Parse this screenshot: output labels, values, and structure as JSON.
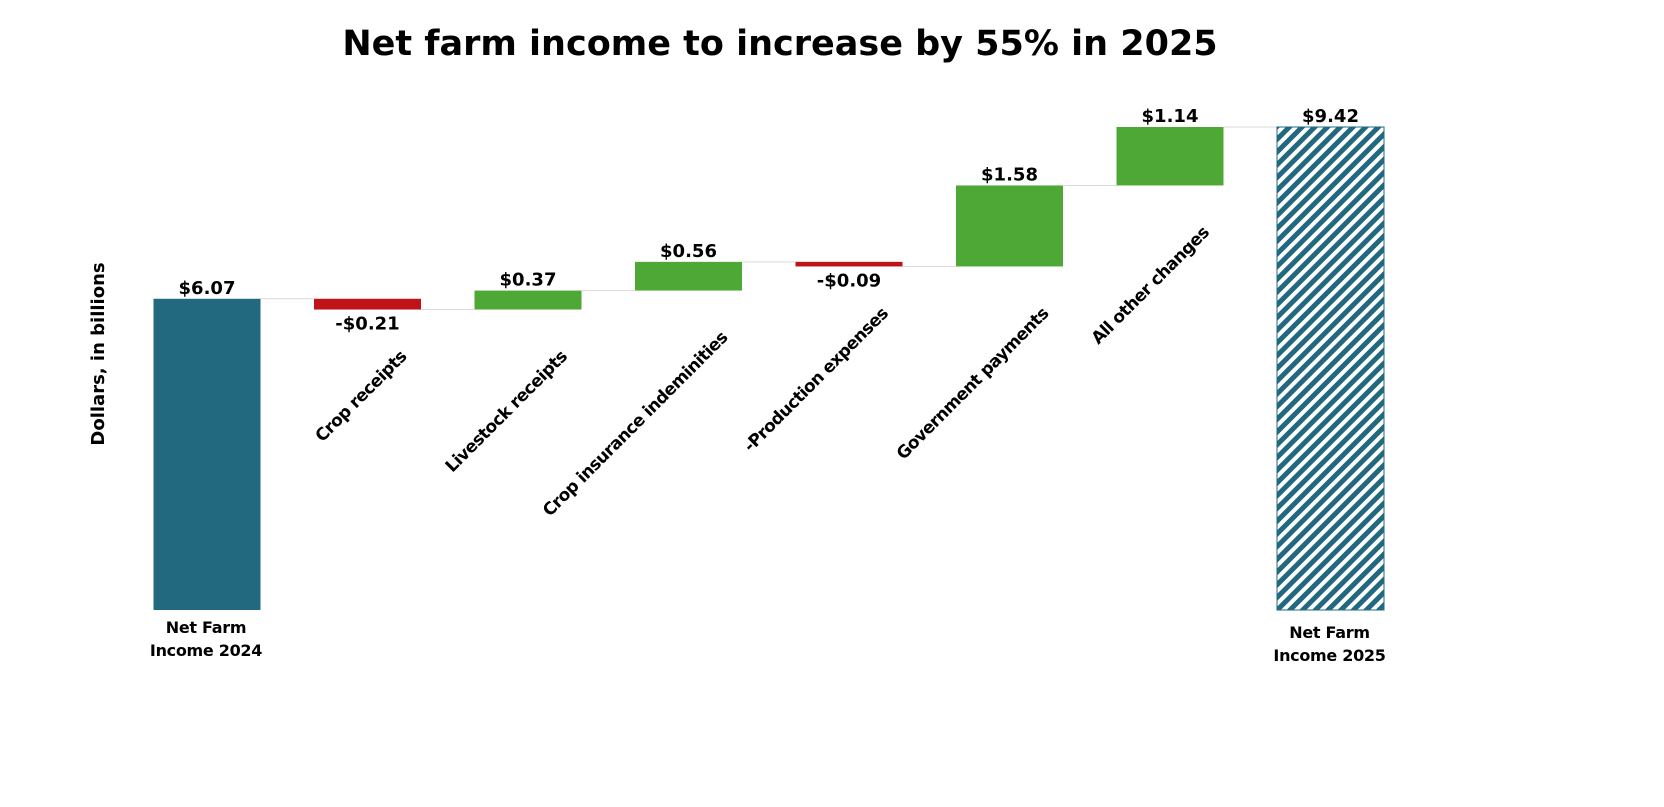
{
  "chart_data": {
    "type": "waterfall",
    "title": "Net farm income to increase by 55% in 2025",
    "ylabel": "Dollars, in billions",
    "steps": [
      {
        "label": "Net Farm Income 2024",
        "label_lines": [
          "Net Farm",
          "Income 2024"
        ],
        "kind": "total",
        "value": 6.07,
        "text": "$6.07"
      },
      {
        "label": "Crop receipts",
        "kind": "delta",
        "value": -0.21,
        "text": "-$0.21"
      },
      {
        "label": "Livestock receipts",
        "kind": "delta",
        "value": 0.37,
        "text": "$0.37"
      },
      {
        "label": "Crop insurance indeminities",
        "kind": "delta",
        "value": 0.56,
        "text": "$0.56"
      },
      {
        "label": "-Production expenses",
        "kind": "delta",
        "value": -0.09,
        "text": "-$0.09"
      },
      {
        "label": "Government payments",
        "kind": "delta",
        "value": 1.58,
        "text": "$1.58"
      },
      {
        "label": "All other changes",
        "kind": "delta",
        "value": 1.14,
        "text": "$1.14"
      },
      {
        "label": "Net Farm Income 2025",
        "label_lines": [
          "Net Farm",
          "Income 2025"
        ],
        "kind": "total",
        "value": 9.42,
        "text": "$9.42"
      }
    ],
    "ylim": [
      0,
      9.42
    ],
    "grid": false,
    "legend": "none",
    "colors": {
      "start_total": "#226980",
      "end_total_hatch": "#226980",
      "increase": "#4ea836",
      "decrease": "#bf1318",
      "connector": "#d9d9d9"
    }
  }
}
